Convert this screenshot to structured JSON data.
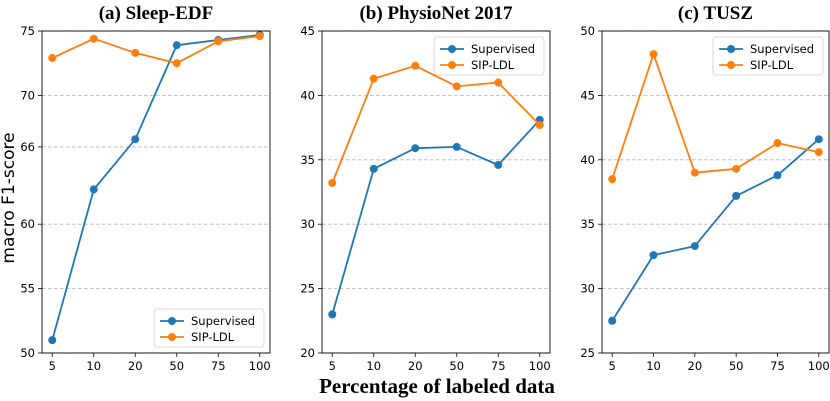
{
  "figure": {
    "xlabel": "Percentage of labeled data",
    "ylabel": "macro F1-score"
  },
  "colors": {
    "supervised": "#1f77b4",
    "sip_ldl": "#ff7f0e"
  },
  "chart_data": [
    {
      "type": "line",
      "title": "(a) Sleep-EDF",
      "categories": [
        "5",
        "10",
        "20",
        "50",
        "75",
        "100"
      ],
      "yticks": [
        50,
        55,
        60,
        66,
        70,
        75
      ],
      "ylim": [
        50,
        75
      ],
      "legend_position": "lower-right",
      "series": [
        {
          "name": "Supervised",
          "values": [
            51.0,
            62.7,
            66.6,
            73.9,
            74.3,
            74.7
          ]
        },
        {
          "name": "SIP-LDL",
          "values": [
            72.9,
            74.4,
            73.3,
            72.5,
            74.2,
            74.6
          ]
        }
      ]
    },
    {
      "type": "line",
      "title": "(b) PhysioNet 2017",
      "categories": [
        "5",
        "10",
        "20",
        "50",
        "75",
        "100"
      ],
      "yticks": [
        20,
        25,
        30,
        35,
        40,
        45
      ],
      "ylim": [
        20,
        45
      ],
      "legend_position": "upper-right",
      "series": [
        {
          "name": "Supervised",
          "values": [
            23.0,
            34.3,
            35.9,
            36.0,
            34.6,
            38.1
          ]
        },
        {
          "name": "SIP-LDL",
          "values": [
            33.2,
            41.3,
            42.3,
            40.7,
            41.0,
            37.7
          ]
        }
      ]
    },
    {
      "type": "line",
      "title": "(c) TUSZ",
      "categories": [
        "5",
        "10",
        "20",
        "50",
        "75",
        "100"
      ],
      "yticks": [
        25,
        30,
        35,
        40,
        45,
        50
      ],
      "ylim": [
        25,
        50
      ],
      "legend_position": "upper-right",
      "series": [
        {
          "name": "Supervised",
          "values": [
            27.5,
            32.6,
            33.3,
            37.2,
            38.8,
            41.6
          ]
        },
        {
          "name": "SIP-LDL",
          "values": [
            38.5,
            48.2,
            39.0,
            39.3,
            41.3,
            40.6
          ]
        }
      ]
    }
  ]
}
